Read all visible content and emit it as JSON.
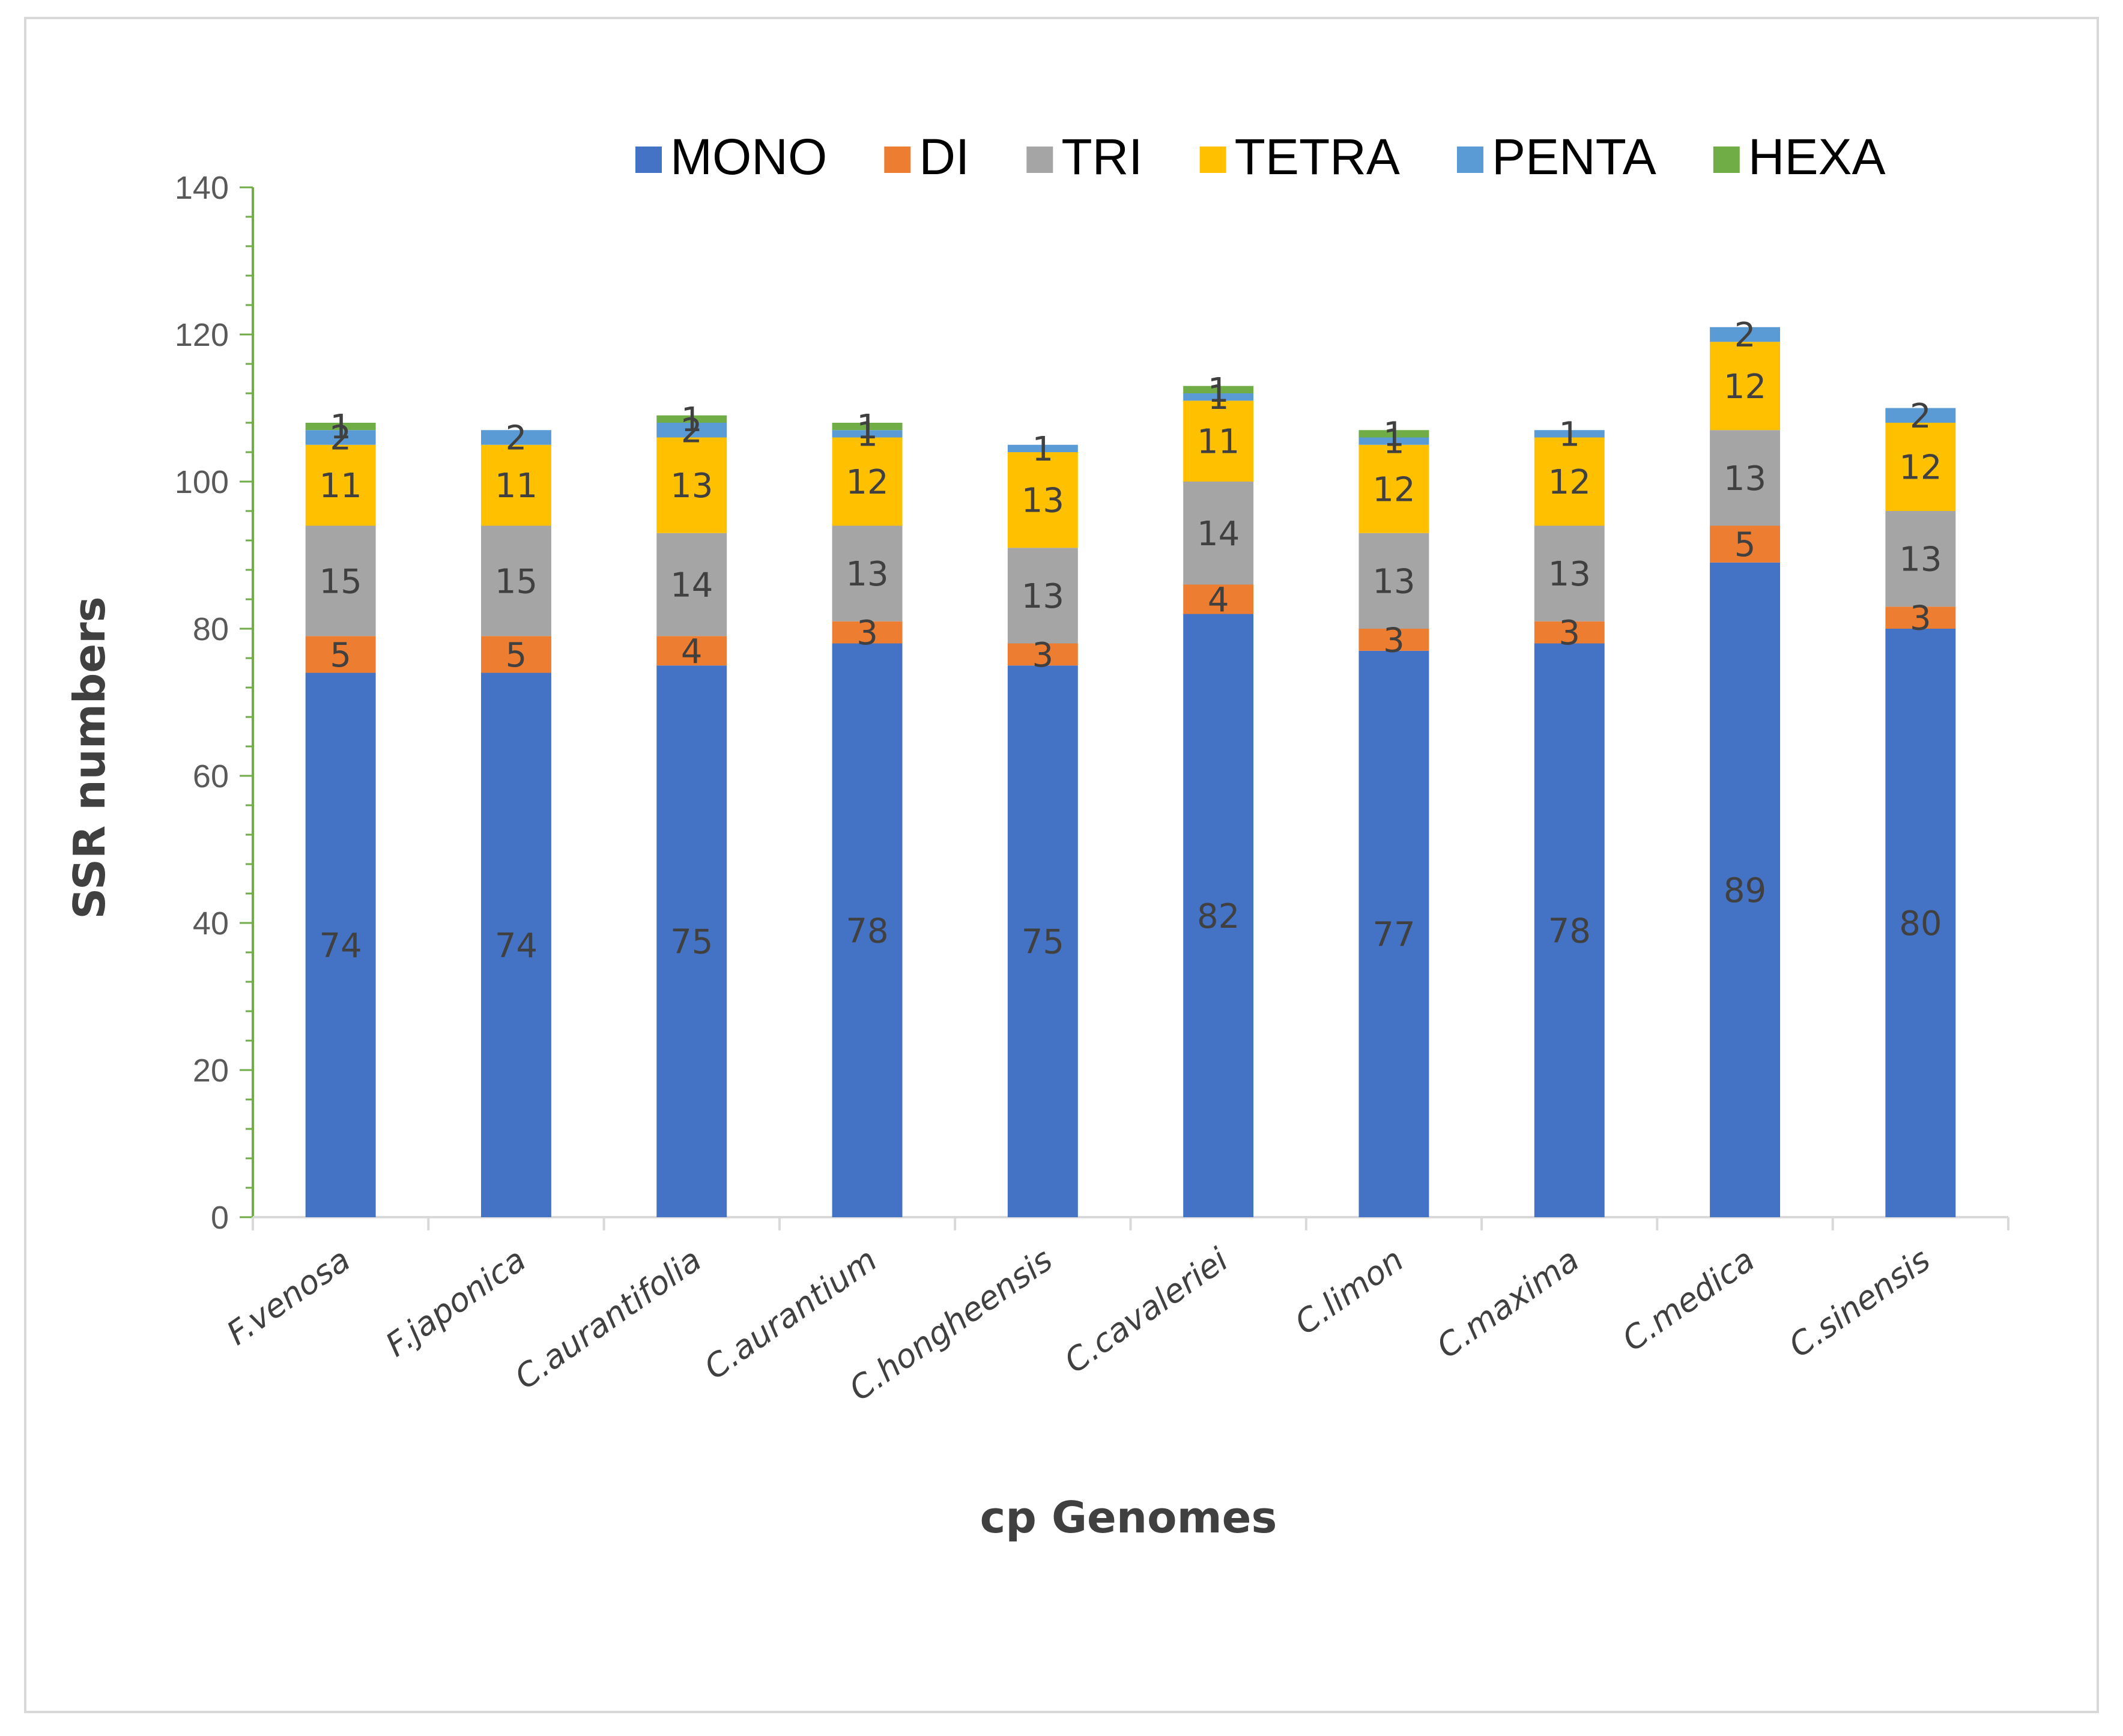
{
  "chart_data": {
    "type": "bar",
    "stacked": true,
    "title": "",
    "xlabel": "cp Genomes",
    "ylabel": "SSR numbers",
    "ylim": [
      0,
      140
    ],
    "y_major_step": 20,
    "y_minor_step": 4,
    "grid": false,
    "legend_position": "top",
    "categories": [
      "F.venosa",
      "F.japonica",
      "C.aurantifolia",
      "C.aurantium",
      "C.hongheensis",
      "C.cavaleriei",
      "C.limon",
      "C.maxima",
      "C.medica",
      "C.sinensis"
    ],
    "series": [
      {
        "name": "MONO",
        "color": "#4472c4",
        "values": [
          74,
          74,
          75,
          78,
          75,
          82,
          77,
          78,
          89,
          80
        ]
      },
      {
        "name": "DI",
        "color": "#ed7d31",
        "values": [
          5,
          5,
          4,
          3,
          3,
          4,
          3,
          3,
          5,
          3
        ]
      },
      {
        "name": "TRI",
        "color": "#a5a5a5",
        "values": [
          15,
          15,
          14,
          13,
          13,
          14,
          13,
          13,
          13,
          13
        ]
      },
      {
        "name": "TETRA",
        "color": "#ffc000",
        "values": [
          11,
          11,
          13,
          12,
          13,
          11,
          12,
          12,
          12,
          12
        ]
      },
      {
        "name": "PENTA",
        "color": "#5b9bd5",
        "values": [
          2,
          2,
          2,
          1,
          1,
          1,
          1,
          1,
          2,
          2
        ]
      },
      {
        "name": "HEXA",
        "color": "#70ad47",
        "values": [
          1,
          0,
          1,
          1,
          0,
          1,
          1,
          0,
          0,
          0
        ]
      }
    ]
  }
}
